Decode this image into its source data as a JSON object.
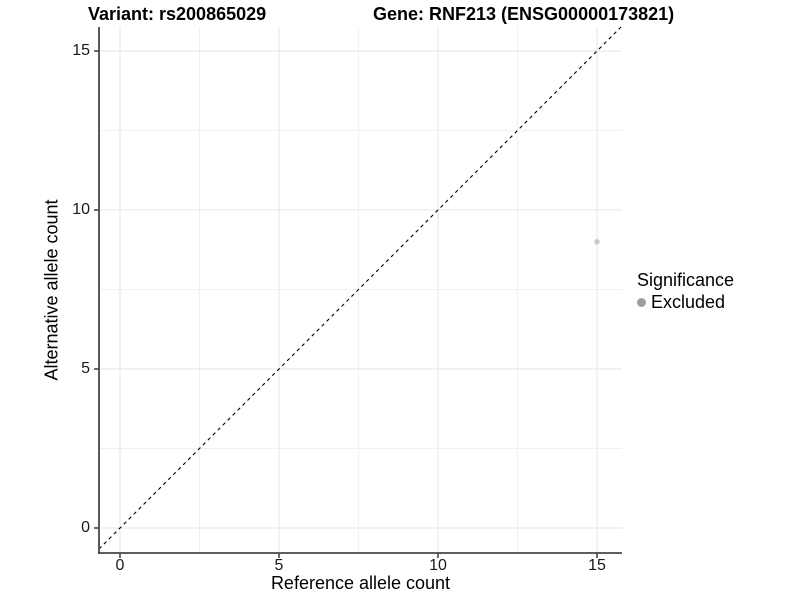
{
  "chart_data": {
    "type": "scatter",
    "title_variant": "Variant: rs200865029",
    "title_gene": "Gene: RNF213 (ENSG00000173821)",
    "xlabel": "Reference allele count",
    "ylabel": "Alternative allele count",
    "xlim": [
      -0.75,
      15.75
    ],
    "ylim": [
      -0.75,
      15.75
    ],
    "x_ticks": [
      "0",
      "5",
      "10",
      "15"
    ],
    "y_ticks": [
      "0",
      "5",
      "10",
      "15"
    ],
    "x_tick_values": [
      0,
      5,
      10,
      15
    ],
    "y_tick_values": [
      0,
      5,
      10,
      15
    ],
    "x_minor_tick_values": [
      2.5,
      7.5,
      12.5
    ],
    "y_minor_tick_values": [
      2.5,
      7.5,
      12.5
    ],
    "grid": "major+minor",
    "legend_position": "right",
    "reference_line": {
      "type": "identity y=x",
      "slope": 1,
      "intercept": 0,
      "style": "dashed",
      "color": "#000000"
    },
    "series": [
      {
        "name": "Excluded",
        "color": "#c9c9c9",
        "points": [
          {
            "x": 15,
            "y": 9
          }
        ]
      }
    ],
    "legend": {
      "title": "Significance",
      "entries": [
        {
          "label": "Excluded",
          "color": "#9e9e9e"
        }
      ]
    }
  },
  "colors": {
    "background": "#ffffff",
    "major_grid": "#e4e4e4",
    "minor_grid": "#f1f1f1",
    "axis_line": "#474747",
    "tick_text": "#1a1a1a",
    "title_text": "#000000"
  }
}
